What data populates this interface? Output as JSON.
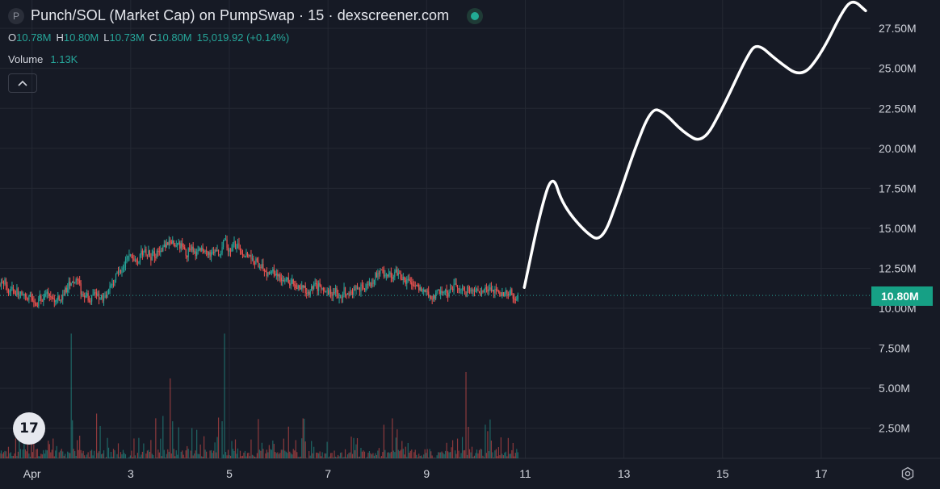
{
  "header": {
    "symbol_initial": "P",
    "title": "Punch/SOL (Market Cap) on PumpSwap · 15 · dexscreener.com"
  },
  "ohlc": {
    "o_label": "O",
    "o_value": "10.78M",
    "h_label": "H",
    "h_value": "10.80M",
    "l_label": "L",
    "l_value": "10.73M",
    "c_label": "C",
    "c_value": "10.80M",
    "change": "15,019.92 (+0.14%)"
  },
  "volume": {
    "label": "Volume",
    "value": "1.13K"
  },
  "collapse_symbol": "^",
  "logo_text": "17",
  "last_price_label": "10.80M",
  "colors": {
    "background": "#161a25",
    "grid": "#242833",
    "up": "#26a69a",
    "down": "#ef5350",
    "price_tag": "#16a085",
    "drawing": "#ffffff"
  },
  "chart_data": {
    "type": "candlestick",
    "y_axis": {
      "ticks": [
        "27.50M",
        "25.00M",
        "22.50M",
        "20.00M",
        "17.50M",
        "15.00M",
        "12.50M",
        "10.00M",
        "7.50M",
        "5.00M",
        "2.50M"
      ],
      "tick_values": [
        27.5,
        25,
        22.5,
        20,
        17.5,
        15,
        12.5,
        10,
        7.5,
        5,
        2.5
      ],
      "ylim": [
        0,
        29.5
      ]
    },
    "x_axis": {
      "ticks": [
        "Apr",
        "3",
        "5",
        "7",
        "9",
        "11",
        "13",
        "15",
        "17"
      ],
      "tick_values": [
        1,
        3,
        5,
        7,
        9,
        11,
        13,
        15,
        17
      ],
      "xlim": [
        0.35,
        18.0
      ]
    },
    "last_price": 10.8,
    "market_cap_anchors": [
      [
        0.35,
        11.5
      ],
      [
        0.6,
        11.3
      ],
      [
        0.9,
        10.3
      ],
      [
        1.2,
        10.8
      ],
      [
        1.6,
        10.5
      ],
      [
        1.8,
        12.0
      ],
      [
        2.0,
        10.8
      ],
      [
        2.4,
        10.5
      ],
      [
        2.7,
        12.0
      ],
      [
        3.0,
        13.4
      ],
      [
        3.5,
        13.6
      ],
      [
        3.9,
        14.0
      ],
      [
        4.2,
        13.5
      ],
      [
        4.6,
        13.3
      ],
      [
        5.0,
        14.0
      ],
      [
        5.3,
        13.2
      ],
      [
        5.8,
        12.2
      ],
      [
        6.2,
        11.6
      ],
      [
        6.5,
        11.1
      ],
      [
        6.8,
        11.3
      ],
      [
        7.0,
        10.9
      ],
      [
        7.4,
        11.0
      ],
      [
        7.8,
        11.5
      ],
      [
        8.0,
        12.3
      ],
      [
        8.3,
        12.1
      ],
      [
        8.6,
        11.6
      ],
      [
        8.9,
        10.9
      ],
      [
        9.2,
        10.9
      ],
      [
        9.5,
        11.1
      ],
      [
        10.0,
        11.2
      ],
      [
        10.5,
        10.9
      ],
      [
        10.85,
        10.8
      ]
    ],
    "volume_spikes_millions": [
      [
        1.8,
        7.8
      ],
      [
        3.8,
        5.0
      ],
      [
        4.9,
        7.8
      ],
      [
        9.8,
        5.4
      ],
      [
        2.3,
        2.8
      ],
      [
        6.5,
        2.5
      ],
      [
        8.3,
        2.5
      ]
    ],
    "drawn_projection": [
      [
        10.98,
        11.3
      ],
      [
        11.3,
        16.0
      ],
      [
        11.55,
        18.5
      ],
      [
        11.75,
        16.5
      ],
      [
        12.2,
        14.8
      ],
      [
        12.55,
        14.1
      ],
      [
        12.9,
        17.0
      ],
      [
        13.2,
        19.8
      ],
      [
        13.55,
        22.5
      ],
      [
        13.8,
        22.3
      ],
      [
        14.2,
        21.0
      ],
      [
        14.6,
        20.3
      ],
      [
        15.0,
        22.5
      ],
      [
        15.5,
        25.8
      ],
      [
        15.7,
        26.6
      ],
      [
        16.1,
        25.5
      ],
      [
        16.6,
        24.4
      ],
      [
        17.0,
        25.9
      ],
      [
        17.45,
        28.7
      ],
      [
        17.65,
        29.3
      ],
      [
        17.9,
        28.6
      ]
    ]
  }
}
